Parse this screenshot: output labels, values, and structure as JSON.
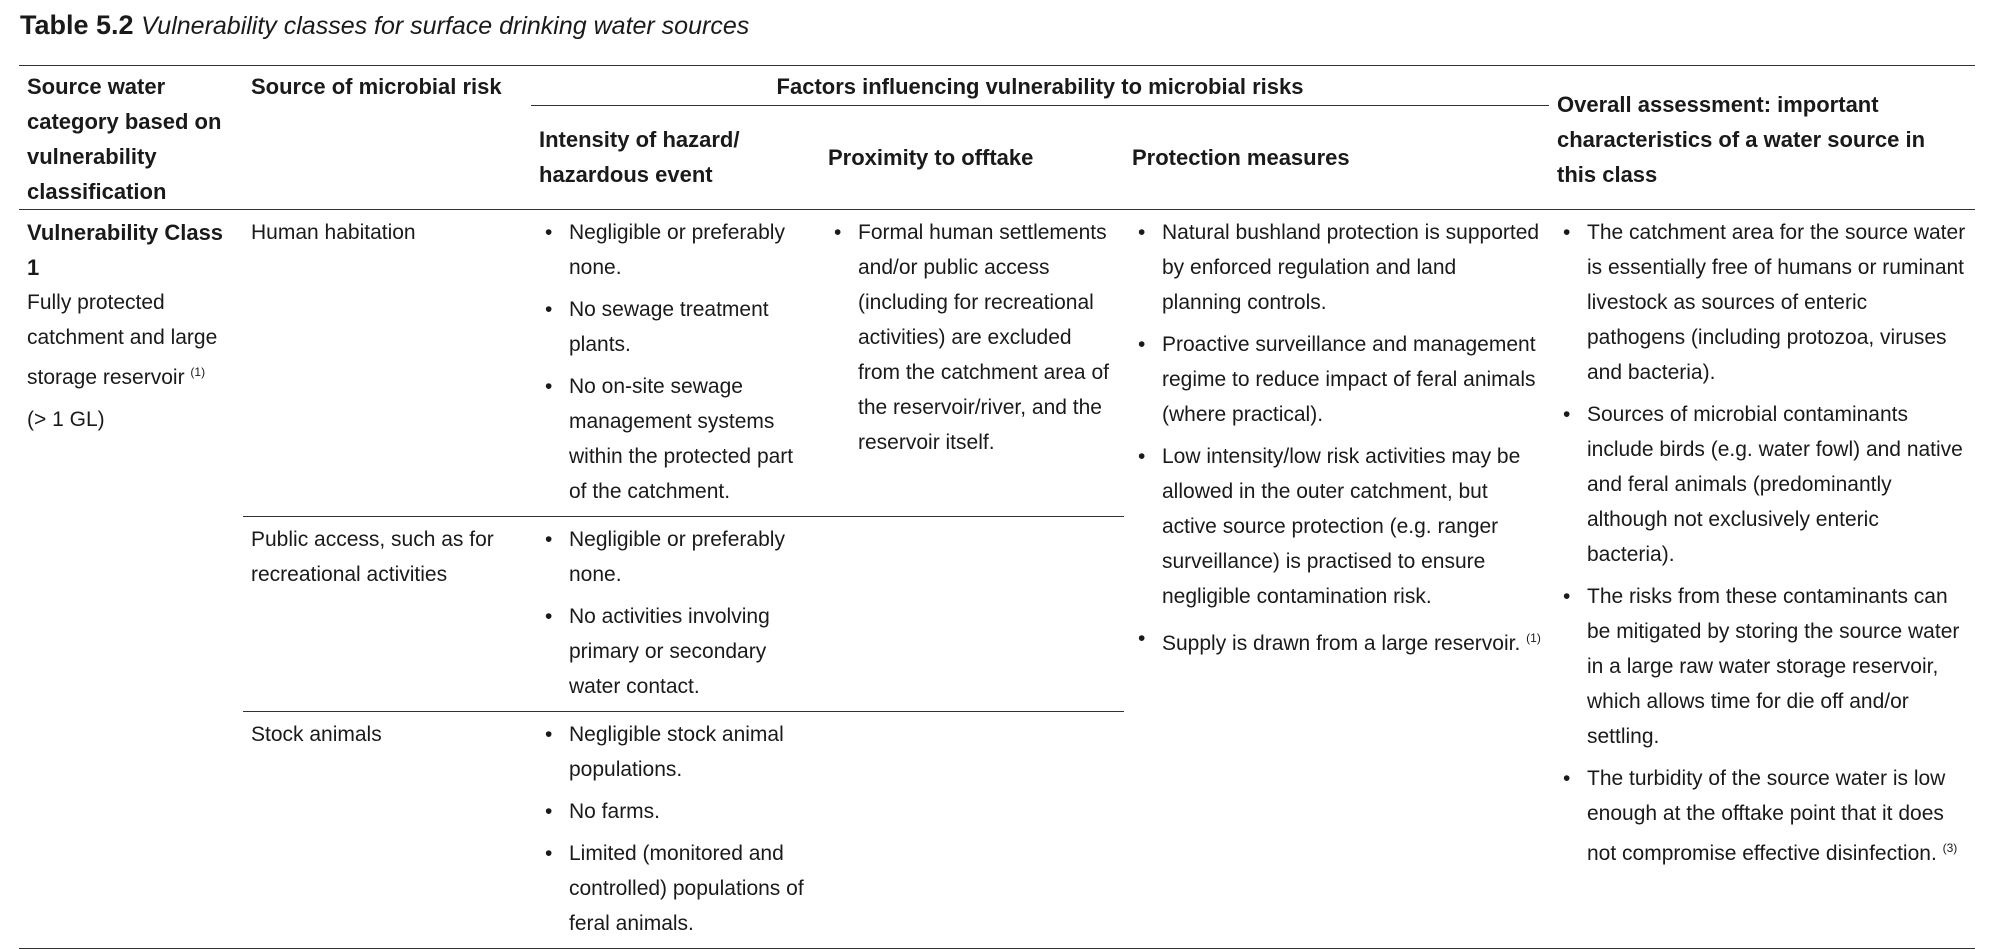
{
  "caption": {
    "label": "Table 5.2",
    "title": "Vulnerability classes for surface drinking water sources"
  },
  "table": {
    "group_header": "Factors influencing vulnerability to microbial risks",
    "columns": [
      "Source water category based on vulnerability classification",
      "Source of microbial risk",
      "Intensity of hazard/ hazardous event",
      "Proximity to offtake",
      "Protection measures",
      "Overall assessment: important characteristics of a water source in this class"
    ],
    "category": {
      "title": "Vulnerability Class 1",
      "description": "Fully protected catchment and large storage reservoir",
      "note": "(1)",
      "capacity": "(> 1 GL)"
    },
    "sources": [
      {
        "name": "Human habitation",
        "intensity": [
          {
            "text": "Negligible or preferably none."
          },
          {
            "text": "No sewage treatment plants."
          },
          {
            "text": "No on-site sewage management systems within the protected part of the catchment."
          }
        ],
        "proximity": [
          {
            "text": "Formal human settlements and/or public access (including for recreational activities) are excluded from the catchment area of the reservoir/river, and the reservoir itself."
          }
        ]
      },
      {
        "name": "Public access, such as for recreational activities",
        "intensity": [
          {
            "text": "Negligible or preferably none."
          },
          {
            "text": "No activities involving primary or secondary water contact."
          }
        ]
      },
      {
        "name": "Stock animals",
        "intensity": [
          {
            "text": "Negligible stock animal populations."
          },
          {
            "text": "No farms."
          },
          {
            "text": "Limited (monitored and controlled) populations of feral animals."
          }
        ]
      }
    ],
    "protection_measures": [
      {
        "text": "Natural bushland protection is supported by enforced regulation and land planning controls."
      },
      {
        "text": "Proactive surveillance and management regime to reduce impact of feral animals (where practical)."
      },
      {
        "text": "Low intensity/low risk activities may be allowed in the outer catchment, but active source protection (e.g. ranger surveillance) is practised to ensure negligible contamination risk."
      },
      {
        "text": "Supply is drawn from a large reservoir.",
        "note": "(1)"
      }
    ],
    "overall_assessment": [
      {
        "text": "The catchment area for the source water is essentially free of humans or ruminant livestock as sources of enteric pathogens (including protozoa, viruses and bacteria)."
      },
      {
        "text": "Sources of microbial contaminants include birds (e.g. water fowl) and native and feral animals (predominantly although not exclusively enteric bacteria)."
      },
      {
        "text": "The risks from these contaminants can be mitigated by storing the source water in a large raw water storage reservoir, which allows time for die off and/or settling."
      },
      {
        "text": "The turbidity of the source water is low enough at the offtake point that it does not compromise effective disinfection.",
        "note": "(3)"
      }
    ]
  }
}
